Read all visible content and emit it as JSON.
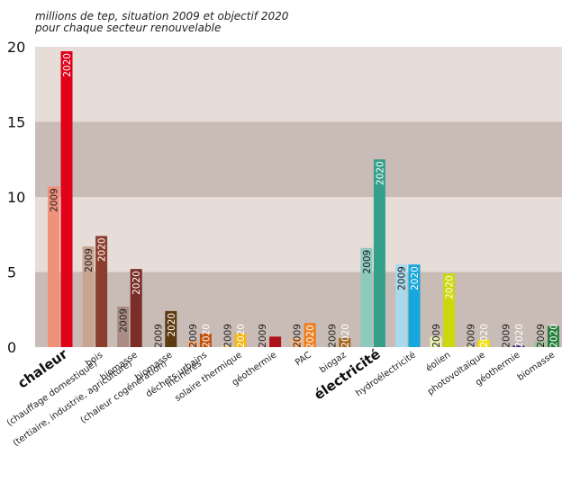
{
  "chart_data": {
    "type": "bar",
    "subtitle_lines": [
      "millions de tep, situation 2009 et objectif 2020",
      "pour chaque secteur renouvelable"
    ],
    "ylim": [
      0,
      20
    ],
    "yticks": [
      0,
      5,
      10,
      15,
      20
    ],
    "series": [
      {
        "name": "2009"
      },
      {
        "name": "2020"
      }
    ],
    "categories": [
      {
        "label": [
          "chaleur"
        ],
        "major": true,
        "v2009": 10.7,
        "v2020": 19.7,
        "c2009": "#f0917a",
        "c2020": "#e10019",
        "text2020": "#ffffff",
        "show2009": true,
        "show2020": true
      },
      {
        "label": [
          "bois",
          "(chauffage domestique)"
        ],
        "v2009": 6.7,
        "v2020": 7.4,
        "c2009": "#c9a490",
        "c2020": "#8b3e2d",
        "text2020": "#ffffff",
        "show2009": true,
        "show2020": true
      },
      {
        "label": [
          "biomasse",
          "(tertiaire, industrie, agriculture)"
        ],
        "v2009": 2.7,
        "v2020": 5.2,
        "c2009": "#a98d85",
        "c2020": "#7b2e28",
        "text2020": "#ffffff",
        "show2009": true,
        "show2020": true
      },
      {
        "label": [
          "biomasse",
          "(chaleur cogénération)"
        ],
        "v2009": 0.0,
        "v2020": 2.4,
        "c2009": "#c8b6a6",
        "c2020": "#5c3a12",
        "text2020": "#ffffff",
        "show2009": true,
        "show2020": true
      },
      {
        "label": [
          "déchets urbains",
          "incinérés"
        ],
        "v2009": 0.4,
        "v2020": 0.9,
        "c2009": "#efad80",
        "c2020": "#c0520c",
        "text2020": "#ffffff",
        "show2009": true,
        "show2020": true
      },
      {
        "label": [
          "solaire thermique"
        ],
        "v2009": 0.1,
        "v2020": 0.9,
        "c2009": "#fad795",
        "c2020": "#f7b516",
        "text2020": "#ffffff",
        "show2009": true,
        "show2020": true
      },
      {
        "label": [
          "géothermie"
        ],
        "v2009": 0.1,
        "v2020": 0.7,
        "c2009": "#d8b0ae",
        "c2020": "#b0121b",
        "text2020": "#ffffff",
        "show2009": true,
        "show2020": false
      },
      {
        "label": [
          "PAC"
        ],
        "v2009": 0.6,
        "v2020": 1.6,
        "c2009": "#f7b683",
        "c2020": "#ef7d1c",
        "text2020": "#ffffff",
        "show2009": true,
        "show2020": true
      },
      {
        "label": [
          "biogaz"
        ],
        "v2009": 0.1,
        "v2020": 0.6,
        "c2009": "#c8b6a6",
        "c2020": "#a4671e",
        "text2020": "#ffffff",
        "show2009": true,
        "show2020": true
      },
      {
        "label": [
          "électricité"
        ],
        "major": true,
        "v2009": 6.6,
        "v2020": 12.5,
        "c2009": "#8ec9bd",
        "c2020": "#34a08b",
        "text2020": "#ffffff",
        "show2009": true,
        "show2020": true
      },
      {
        "label": [
          "hydroélectricité"
        ],
        "v2009": 5.5,
        "v2020": 5.5,
        "c2009": "#a8d9ec",
        "c2020": "#16a7dc",
        "text2020": "#ffffff",
        "show2009": true,
        "show2020": true
      },
      {
        "label": [
          "éolien"
        ],
        "v2009": 0.7,
        "v2020": 4.9,
        "c2009": "#ecefb4",
        "c2020": "#cdd80c",
        "text2020": "#ffffff",
        "show2009": true,
        "show2020": true
      },
      {
        "label": [
          "photovoltaïque"
        ],
        "v2009": 0.05,
        "v2020": 0.5,
        "c2009": "#f5f0a0",
        "c2020": "#f2de08",
        "text2020": "#ffffff",
        "show2009": true,
        "show2020": true
      },
      {
        "label": [
          "géothermie"
        ],
        "v2009": 0.02,
        "v2020": 0.1,
        "c2009": "#b7b8d6",
        "c2020": "#34307a",
        "text2020": "#ffffff",
        "show2009": true,
        "show2020": true
      },
      {
        "label": [
          "biomasse"
        ],
        "v2009": 0.4,
        "v2020": 1.4,
        "c2009": "#9fbe9a",
        "c2020": "#26803c",
        "text2020": "#ffffff",
        "show2009": true,
        "show2020": true
      }
    ]
  }
}
